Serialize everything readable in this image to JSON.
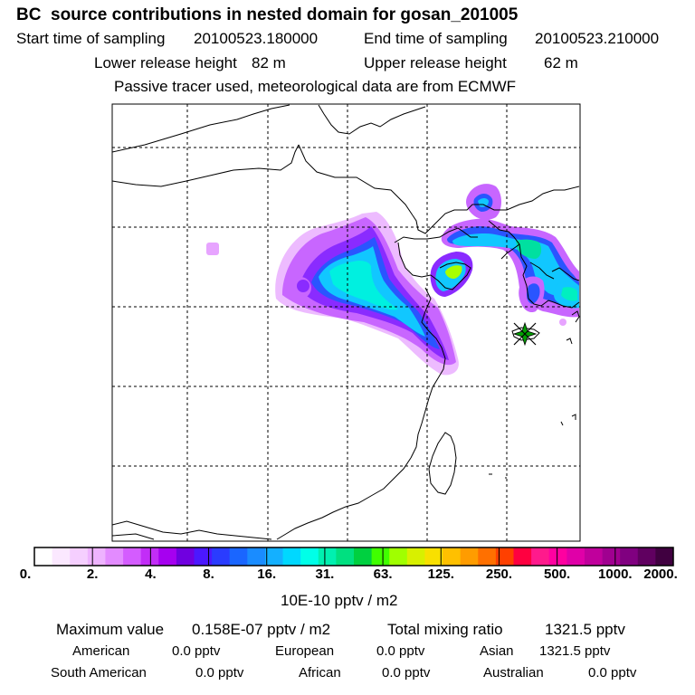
{
  "header": {
    "title": "BC  source contributions in nested domain for gosan_201005",
    "start_label": "Start time of sampling",
    "start_value": "20100523.180000",
    "end_label": "End time of sampling",
    "end_value": "20100523.210000",
    "lower_label": "Lower release height",
    "lower_value": "82 m",
    "upper_label": "Upper release height",
    "upper_value": "62 m",
    "note": "Passive tracer used, meteorological data are from ECMWF"
  },
  "colorbar": {
    "colors": [
      "#ffffff",
      "#fbe8ff",
      "#f5cfff",
      "#eeb3ff",
      "#e38bff",
      "#d45cff",
      "#c22df7",
      "#a600f0",
      "#7000e0",
      "#4b18ff",
      "#2a3cff",
      "#1a66ff",
      "#1a8cff",
      "#14b0ff",
      "#00d8ff",
      "#00ffe8",
      "#00f0b0",
      "#00e080",
      "#00d040",
      "#40ff00",
      "#a0ff00",
      "#d8f000",
      "#f8e000",
      "#ffc000",
      "#ff9c00",
      "#ff7000",
      "#ff4000",
      "#ff0040",
      "#ff1a8c",
      "#ff00a0",
      "#e000a8",
      "#c0009c",
      "#a00090",
      "#800080",
      "#600060",
      "#400040"
    ],
    "tick_labels": [
      "0.",
      "2.",
      "4.",
      "8.",
      "16.",
      "31.",
      "63.",
      "125.",
      "250.",
      "500.",
      "1000.",
      "2000."
    ],
    "unit": "10E-10 pptv / m2"
  },
  "summary": {
    "max_label": "Maximum value",
    "max_value": "0.158E-07 pptv / m2",
    "total_label": "Total mixing ratio",
    "total_value": "1321.5 pptv",
    "regions": [
      {
        "name": "American",
        "value": "0.0 pptv"
      },
      {
        "name": "European",
        "value": "0.0 pptv"
      },
      {
        "name": "Asian",
        "value": "1321.5 pptv"
      },
      {
        "name": "South American",
        "value": "0.0 pptv"
      },
      {
        "name": "African",
        "value": "0.0 pptv"
      },
      {
        "name": "Australian",
        "value": "0.0 pptv"
      }
    ]
  },
  "map": {
    "receptor_marker": "star-marker",
    "colors": {
      "outline": "#000000",
      "grid": "#000000",
      "receptor_star": "#00a000",
      "receptor_x": "#000000"
    }
  }
}
